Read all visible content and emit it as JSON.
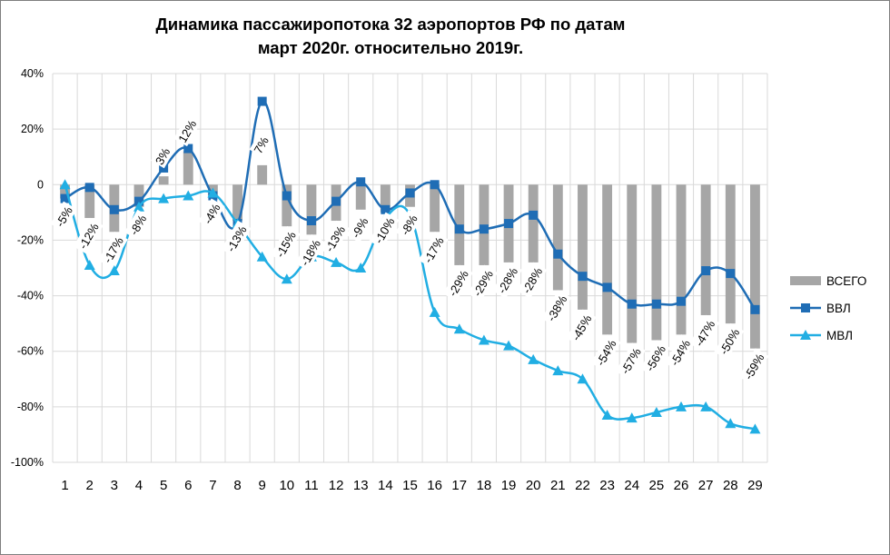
{
  "chart_data": {
    "type": "bar",
    "title_line1": "Динамика пассажиропотока 32 аэропортов РФ по датам",
    "title_line2": "март 2020г. относительно 2019г.",
    "categories": [
      "1",
      "2",
      "3",
      "4",
      "5",
      "6",
      "7",
      "8",
      "9",
      "10",
      "11",
      "12",
      "13",
      "14",
      "15",
      "16",
      "17",
      "18",
      "19",
      "20",
      "21",
      "22",
      "23",
      "24",
      "25",
      "26",
      "27",
      "28",
      "29"
    ],
    "ylim": [
      -100,
      40
    ],
    "yticks": [
      "40%",
      "20%",
      "0",
      "-20%",
      "-40%",
      "-60%",
      "-80%",
      "-100%"
    ],
    "grid": true,
    "legend_position": "right",
    "series": [
      {
        "name": "ВСЕГО",
        "kind": "bar",
        "color": "#a6a6a6",
        "values": [
          -5,
          -12,
          -17,
          -8,
          3,
          12,
          -4,
          -13,
          7,
          -15,
          -18,
          -13,
          -9,
          -10,
          -8,
          -17,
          -29,
          -29,
          -28,
          -28,
          -38,
          -45,
          -54,
          -57,
          -56,
          -54,
          -47,
          -50,
          -59
        ],
        "labels": [
          "-5%",
          "-12%",
          "-17%",
          "-8%",
          "3%",
          "12%",
          "-4%",
          "-13%",
          "7%",
          "-15%",
          "-18%",
          "-13%",
          "-9%",
          "-10%",
          "-8%",
          "-17%",
          "-29%",
          "-29%",
          "-28%",
          "-28%",
          "-38%",
          "-45%",
          "-54%",
          "-57%",
          "-56%",
          "-54%",
          "-47%",
          "-50%",
          "-59%"
        ]
      },
      {
        "name": "ВВЛ",
        "kind": "line",
        "marker": "square",
        "color": "#1f6db5",
        "values": [
          -5,
          -1,
          -9,
          -6,
          6,
          13,
          -4,
          -14,
          30,
          -4,
          -13,
          -6,
          1,
          -9,
          -3,
          0,
          -16,
          -16,
          -14,
          -11,
          -25,
          -33,
          -37,
          -43,
          -43,
          -42,
          -31,
          -32,
          -45
        ]
      },
      {
        "name": "МВЛ",
        "kind": "line",
        "marker": "triangle",
        "color": "#21aee3",
        "values": [
          0,
          -29,
          -31,
          -8,
          -5,
          -4,
          -3,
          -14,
          -26,
          -34,
          -26,
          -28,
          -30,
          -12,
          -11,
          -46,
          -52,
          -56,
          -58,
          -63,
          -67,
          -70,
          -83,
          -84,
          -82,
          -80,
          -80,
          -86,
          -88
        ]
      }
    ]
  }
}
